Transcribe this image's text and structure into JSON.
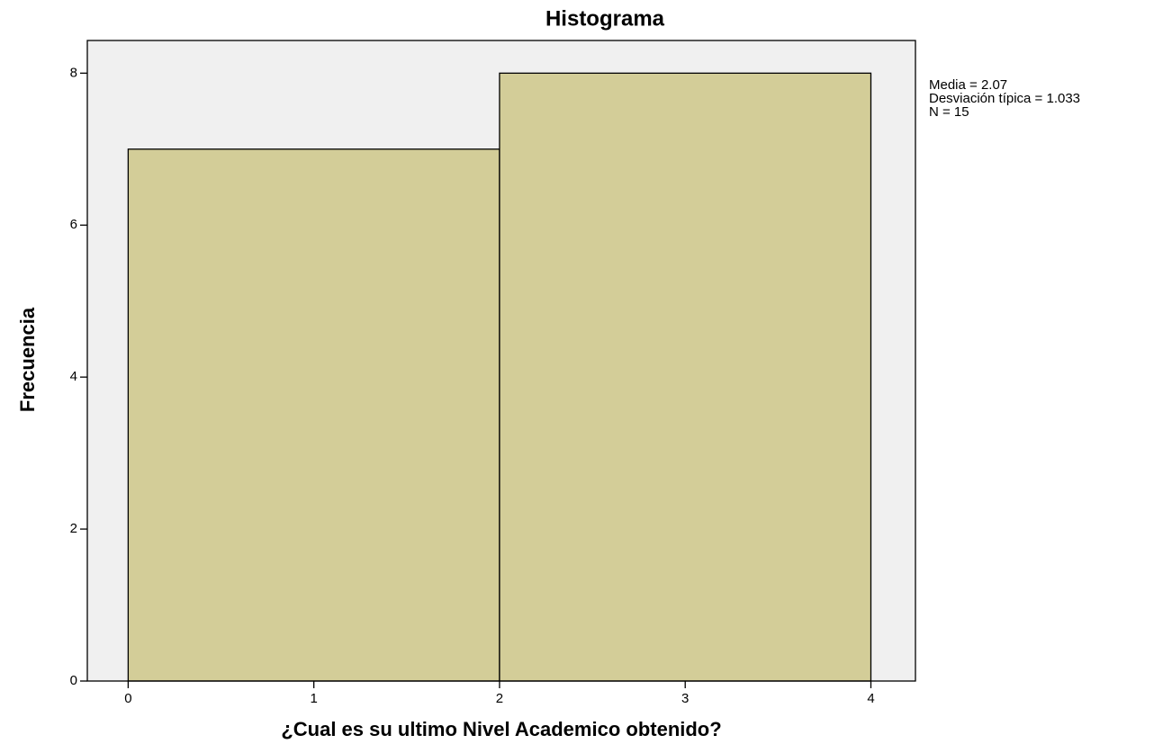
{
  "chart_data": {
    "type": "histogram",
    "title": "Histograma",
    "x_label": "¿Cual es su ultimo Nivel Academico obtenido?",
    "y_label": "Frecuencia",
    "bins": [
      0,
      2,
      4
    ],
    "values": [
      7,
      8
    ],
    "color": "#d3cd98",
    "background": "#f0f0f0",
    "xlim": [
      -0.22,
      4.24
    ],
    "ylim": [
      0,
      8.43
    ],
    "xticks": [
      0,
      1,
      2,
      3,
      4
    ],
    "yticks": [
      0,
      2,
      4,
      6,
      8
    ],
    "annotations": [
      "Media = 2.07",
      "Desviación típica = 1.033",
      "N = 15"
    ]
  }
}
